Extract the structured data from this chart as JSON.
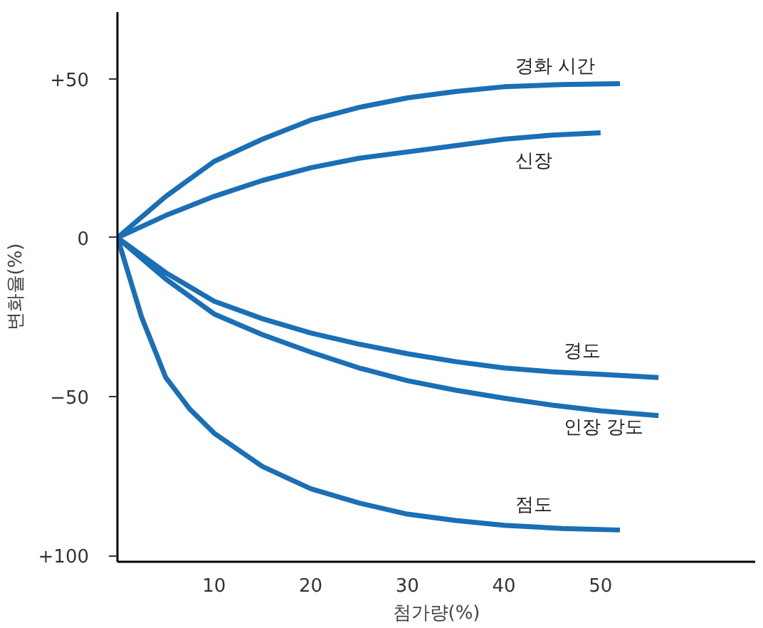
{
  "chart_data": {
    "type": "line",
    "xlabel": "첨가량(%)",
    "ylabel": "변화율(%)",
    "xlim": [
      0,
      66
    ],
    "ylim": [
      -102,
      71
    ],
    "xticks": [
      10,
      20,
      30,
      40,
      50
    ],
    "yticks": [
      {
        "value": 50,
        "label": "+50"
      },
      0,
      -50,
      {
        "value": -100,
        "label": "+100"
      }
    ],
    "grid": false,
    "legend": false,
    "marker": "none",
    "line_style": "solid",
    "series": [
      {
        "name": "경화 시간",
        "color": "#1a6fb5",
        "x": [
          0,
          5,
          10,
          15,
          20,
          25,
          30,
          35,
          40,
          46,
          52
        ],
        "values": [
          0,
          13,
          24,
          31,
          37,
          41,
          44,
          46,
          47.5,
          48.2,
          48.5
        ]
      },
      {
        "name": "신장",
        "color": "#1a6fb5",
        "x": [
          0,
          5,
          10,
          15,
          20,
          25,
          30,
          35,
          40,
          45,
          50
        ],
        "values": [
          0,
          7,
          13,
          18,
          22,
          25,
          27,
          29,
          31,
          32.3,
          33
        ]
      },
      {
        "name": "경도",
        "color": "#1a6fb5",
        "x": [
          0,
          5,
          10,
          15,
          20,
          25,
          30,
          35,
          40,
          45,
          50,
          56
        ],
        "values": [
          0,
          -11,
          -20,
          -25.5,
          -30,
          -33.5,
          -36.5,
          -39,
          -41,
          -42.2,
          -43,
          -44
        ]
      },
      {
        "name": "인장 강도",
        "color": "#1a6fb5",
        "x": [
          0,
          5,
          10,
          15,
          20,
          25,
          30,
          35,
          40,
          45,
          50,
          56
        ],
        "values": [
          0,
          -13,
          -24,
          -30.5,
          -36,
          -41,
          -45,
          -48,
          -50.5,
          -52.7,
          -54.5,
          -56
        ]
      },
      {
        "name": "점도",
        "color": "#1a6fb5",
        "x": [
          0,
          2.5,
          5,
          7.5,
          10,
          15,
          20,
          25,
          30,
          35,
          40,
          46,
          52
        ],
        "values": [
          0,
          -25,
          -44,
          -54,
          -61.5,
          -72,
          -79,
          -83.5,
          -87,
          -89,
          -90.5,
          -91.5,
          -92
        ]
      }
    ]
  }
}
